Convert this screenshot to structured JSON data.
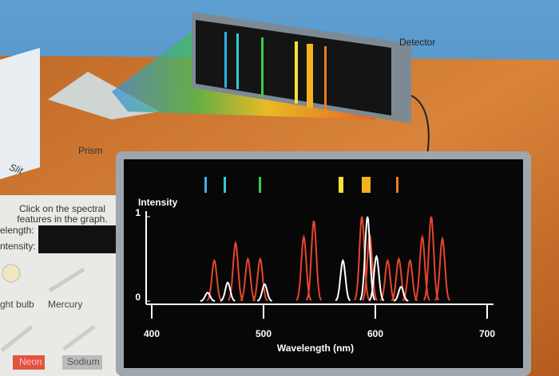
{
  "scene": {
    "detector_label": "Detector",
    "prism_label": "Prism",
    "slit_label": "Slit",
    "instructions": "Click on the spectral features in the graph.",
    "wavelength_label": "elength:",
    "intensity_label": "ntensity:",
    "sources": [
      "ght bulb",
      "Mercury",
      "Neon",
      "Sodium"
    ]
  },
  "chart_data": {
    "type": "spectrum",
    "ylabel": "Intensity",
    "xlabel": "Wavelength (nm)",
    "xlim": [
      400,
      700
    ],
    "xticks": [
      400,
      500,
      600,
      700
    ],
    "ylim": [
      0,
      1
    ],
    "yticks": [
      0,
      1
    ],
    "series": [
      {
        "color": "#e8452c",
        "x": [
          456,
          475,
          486,
          497,
          536,
          545,
          588,
          595,
          611,
          621,
          631,
          642,
          650,
          660
        ],
        "values": [
          0.48,
          0.69,
          0.5,
          0.5,
          0.76,
          0.95,
          1.0,
          0.78,
          0.48,
          0.5,
          0.48,
          0.76,
          1.0,
          0.74
        ]
      },
      {
        "color": "#ffffff",
        "x": [
          450,
          468,
          501,
          571,
          593,
          601,
          623
        ],
        "values": [
          0.1,
          0.22,
          0.2,
          0.48,
          1.0,
          0.53,
          0.17
        ]
      }
    ]
  }
}
